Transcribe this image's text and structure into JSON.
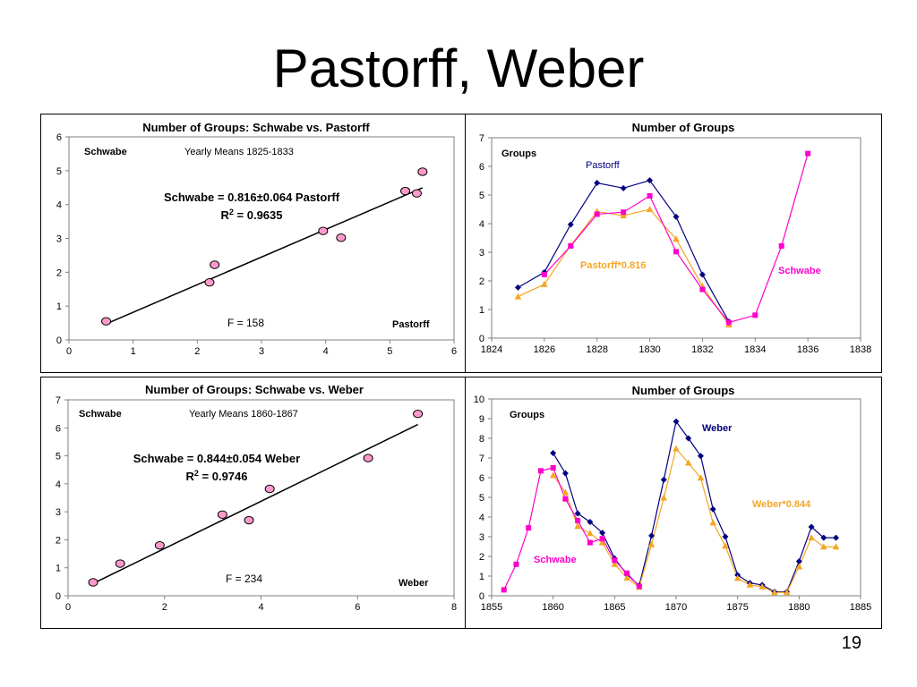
{
  "slide": {
    "title": "Pastorff, Weber",
    "page_number": "19"
  },
  "chart_data": [
    {
      "id": "scatter_pastorff",
      "type": "scatter",
      "title": "Number of Groups: Schwabe vs. Pastorff",
      "xlim": [
        0,
        6
      ],
      "ylim": [
        0,
        6
      ],
      "xticks": [
        0,
        1,
        2,
        3,
        4,
        5,
        6
      ],
      "yticks": [
        0,
        1,
        2,
        3,
        4,
        5,
        6
      ],
      "series": [
        {
          "x": [
            0.58,
            2.19,
            2.27,
            3.96,
            4.24,
            5.24,
            5.42,
            5.51
          ],
          "y": [
            0.55,
            1.7,
            2.22,
            3.22,
            3.02,
            4.4,
            4.33,
            4.97
          ],
          "color": "#ff99cc"
        }
      ],
      "fit": {
        "slope": 0.816,
        "x_range": [
          0.58,
          5.51
        ]
      },
      "annotations": {
        "ylabel_inside": "Schwabe",
        "subtitle": "Yearly Means 1825-1833",
        "equation": "Schwabe = 0.816±0.064 Pastorff",
        "r2_label": "R",
        "r2_exp": "2",
        "r2_value": " = 0.9635",
        "f_stat": "F = 158",
        "xlabel_inside": "Pastorff"
      }
    },
    {
      "id": "line_pastorff",
      "type": "line",
      "title": "Number of Groups",
      "xlim": [
        1824,
        1838
      ],
      "ylim": [
        0,
        7
      ],
      "xticks": [
        1824,
        1826,
        1828,
        1830,
        1832,
        1834,
        1836,
        1838
      ],
      "yticks": [
        0,
        1,
        2,
        3,
        4,
        5,
        6,
        7
      ],
      "series": [
        {
          "name": "Pastorff",
          "color": "#000080",
          "marker": "diamond",
          "x": [
            1825,
            1826,
            1827,
            1828,
            1829,
            1830,
            1831,
            1832,
            1833
          ],
          "y": [
            1.77,
            2.3,
            3.97,
            5.42,
            5.24,
            5.51,
            4.24,
            2.22,
            0.58
          ]
        },
        {
          "name": "Pastorff*0.816",
          "color": "#f5a623",
          "marker": "triangle",
          "x": [
            1825,
            1826,
            1827,
            1828,
            1829,
            1830,
            1831,
            1832,
            1833
          ],
          "y": [
            1.45,
            1.88,
            3.24,
            4.42,
            4.28,
            4.5,
            3.46,
            1.81,
            0.47
          ]
        },
        {
          "name": "Schwabe",
          "color": "#ff00cc",
          "marker": "square",
          "x": [
            1826,
            1827,
            1828,
            1829,
            1830,
            1831,
            1832,
            1833,
            1834,
            1835,
            1836
          ],
          "y": [
            2.22,
            3.22,
            4.33,
            4.4,
            4.97,
            3.02,
            1.7,
            0.55,
            0.8,
            3.22,
            6.45
          ]
        }
      ],
      "annotations": {
        "ylabel_inside": "Groups"
      }
    },
    {
      "id": "scatter_weber",
      "type": "scatter",
      "title": "Number of Groups: Schwabe vs. Weber",
      "xlim": [
        0,
        8
      ],
      "ylim": [
        0,
        7
      ],
      "xticks": [
        0,
        2,
        4,
        6,
        8
      ],
      "yticks": [
        0,
        1,
        2,
        3,
        4,
        5,
        6,
        7
      ],
      "series": [
        {
          "x": [
            0.52,
            1.08,
            1.9,
            3.2,
            3.75,
            4.18,
            6.22,
            7.25
          ],
          "y": [
            0.48,
            1.15,
            1.8,
            2.9,
            2.7,
            3.82,
            4.92,
            6.5
          ],
          "color": "#ff99cc"
        }
      ],
      "fit": {
        "slope": 0.844,
        "x_range": [
          0.52,
          7.25
        ]
      },
      "annotations": {
        "ylabel_inside": "Schwabe",
        "subtitle": "Yearly Means 1860-1867",
        "equation": "Schwabe = 0.844±0.054 Weber",
        "r2_label": "R",
        "r2_exp": "2",
        "r2_value": " = 0.9746",
        "f_stat": "F = 234",
        "xlabel_inside": "Weber"
      }
    },
    {
      "id": "line_weber",
      "type": "line",
      "title": "Number of Groups",
      "xlim": [
        1855,
        1885
      ],
      "ylim": [
        0,
        10
      ],
      "xticks": [
        1855,
        1860,
        1865,
        1870,
        1875,
        1880,
        1885
      ],
      "yticks": [
        0,
        1,
        2,
        3,
        4,
        5,
        6,
        7,
        8,
        9,
        10
      ],
      "series": [
        {
          "name": "Weber",
          "color": "#000080",
          "marker": "diamond",
          "x": [
            1860,
            1861,
            1862,
            1863,
            1864,
            1865,
            1866,
            1867,
            1868,
            1869,
            1870,
            1871,
            1872,
            1873,
            1874,
            1875,
            1876,
            1877,
            1878,
            1879,
            1880,
            1881,
            1882,
            1883
          ],
          "y": [
            7.25,
            6.22,
            4.18,
            3.75,
            3.2,
            1.9,
            1.08,
            0.52,
            3.05,
            5.9,
            8.85,
            8.0,
            7.1,
            4.4,
            3.0,
            1.05,
            0.65,
            0.55,
            0.2,
            0.2,
            1.75,
            3.5,
            2.95,
            2.95
          ]
        },
        {
          "name": "Weber*0.844",
          "color": "#f5a623",
          "marker": "triangle",
          "x": [
            1860,
            1861,
            1862,
            1863,
            1864,
            1865,
            1866,
            1867,
            1868,
            1869,
            1870,
            1871,
            1872,
            1873,
            1874,
            1875,
            1876,
            1877,
            1878,
            1879,
            1880,
            1881,
            1882,
            1883
          ],
          "y": [
            6.12,
            5.25,
            3.53,
            3.17,
            2.7,
            1.6,
            0.91,
            0.44,
            2.6,
            4.98,
            7.47,
            6.75,
            5.99,
            3.71,
            2.53,
            0.89,
            0.55,
            0.46,
            0.17,
            0.17,
            1.48,
            2.95,
            2.49,
            2.49
          ]
        },
        {
          "name": "Schwabe",
          "color": "#ff00cc",
          "marker": "square",
          "x": [
            1856,
            1857,
            1858,
            1859,
            1860,
            1861,
            1862,
            1863,
            1864,
            1865,
            1866,
            1867
          ],
          "y": [
            0.3,
            1.6,
            3.45,
            6.35,
            6.5,
            4.92,
            3.82,
            2.7,
            2.9,
            1.8,
            1.15,
            0.48
          ]
        }
      ],
      "annotations": {
        "ylabel_inside": "Groups"
      }
    }
  ],
  "labels": {
    "line_pastorff": [
      {
        "text": "Pastorff",
        "color": "#000080"
      },
      {
        "text": "Pastorff*0.816",
        "color": "#f5a623"
      },
      {
        "text": "Schwabe",
        "color": "#ff00cc"
      }
    ],
    "line_weber": [
      {
        "text": "Weber",
        "color": "#000080"
      },
      {
        "text": "Weber*0.844",
        "color": "#f5a623"
      },
      {
        "text": "Schwabe",
        "color": "#ff00cc"
      }
    ]
  }
}
